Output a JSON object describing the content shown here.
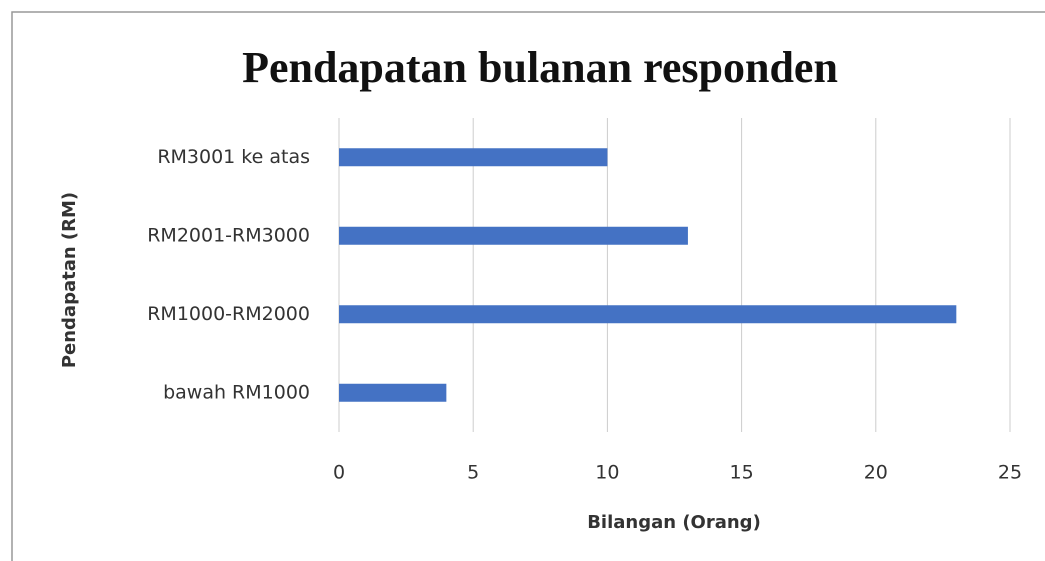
{
  "chart_data": {
    "type": "bar",
    "orientation": "horizontal",
    "title": "Pendapatan bulanan responden",
    "x_label": "Bilangan (Orang)",
    "y_label": "Pendapatan (RM)",
    "categories": [
      "RM3001 ke atas",
      "RM2001-RM3000",
      "RM1000-RM2000",
      "bawah RM1000"
    ],
    "values": [
      10,
      13,
      23,
      4
    ],
    "color": "#4472c4",
    "xlim": [
      0,
      25
    ],
    "xticks": [
      0,
      5,
      10,
      15,
      20,
      25
    ],
    "grid": true
  }
}
